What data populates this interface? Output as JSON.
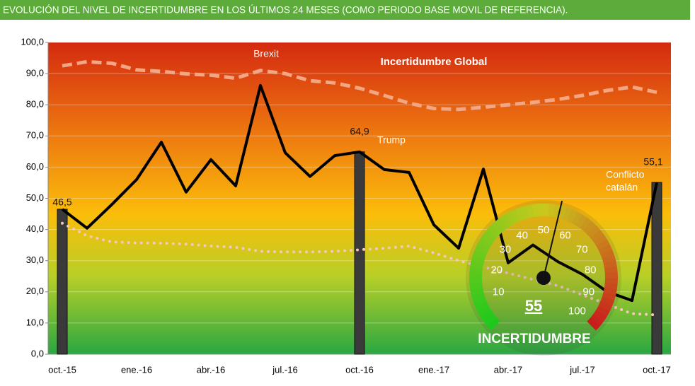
{
  "chart_data": {
    "type": "line",
    "title": "EVOLUCIÓN DEL NIVEL DE INCERTIDUMBRE EN LOS ÚLTIMOS 24 MESES (COMO PERIODO BASE MOVIL DE REFERENCIA).",
    "subtitle": "Incertidumbre Global",
    "categories": [
      "oct.-15",
      null,
      null,
      "ene.-16",
      null,
      null,
      "abr.-16",
      null,
      null,
      "jul.-16",
      null,
      null,
      "oct.-16",
      null,
      null,
      "ene.-17",
      null,
      null,
      "abr.-17",
      null,
      null,
      "jul.-17",
      null,
      null,
      "oct.-17"
    ],
    "ylim": [
      0,
      100
    ],
    "yticks": [
      {
        "value": 0,
        "label": "0,0"
      },
      {
        "value": 10,
        "label": "10,0"
      },
      {
        "value": 20,
        "label": "20,0"
      },
      {
        "value": 30,
        "label": "30,0"
      },
      {
        "value": 40,
        "label": "40,0"
      },
      {
        "value": 50,
        "label": "50,0"
      },
      {
        "value": 60,
        "label": "60,0"
      },
      {
        "value": 70,
        "label": "70,0"
      },
      {
        "value": 80,
        "label": "80,0"
      },
      {
        "value": 90,
        "label": "90,0"
      },
      {
        "value": 100,
        "label": "100,0"
      }
    ],
    "grid": true,
    "series": [
      {
        "type": "bar",
        "color": "#3a3a3a",
        "values": [
          46.5,
          null,
          null,
          null,
          null,
          null,
          null,
          null,
          null,
          null,
          null,
          null,
          64.9,
          null,
          null,
          null,
          null,
          null,
          null,
          null,
          null,
          null,
          null,
          null,
          55.1
        ],
        "value_labels": [
          "46,5",
          null,
          null,
          null,
          null,
          null,
          null,
          null,
          null,
          null,
          null,
          null,
          "64,9",
          null,
          null,
          null,
          null,
          null,
          null,
          null,
          null,
          null,
          null,
          null,
          "55,1"
        ]
      },
      {
        "type": "dashed",
        "color": "#f4a582",
        "values": [
          92.5,
          93.8,
          93.3,
          91.2,
          90.7,
          89.9,
          89.5,
          88.5,
          91,
          90,
          87.7,
          87,
          85.3,
          83,
          80.5,
          78.8,
          78.5,
          79.2,
          80,
          80.8,
          81.7,
          83,
          84.6,
          85.7,
          84
        ]
      },
      {
        "type": "dotted",
        "color": "#f7c6c0",
        "values": [
          42,
          38,
          36,
          35.7,
          35.6,
          35.3,
          34.7,
          34.3,
          33,
          32.8,
          32.8,
          33,
          33.5,
          34,
          34.7,
          32.5,
          30,
          28,
          26,
          24,
          22,
          19,
          16,
          13,
          12.6
        ]
      },
      {
        "type": "solid",
        "color": "#000000",
        "values": [
          46.5,
          40.4,
          48,
          56,
          68,
          52,
          62.4,
          54,
          86.2,
          64.6,
          57,
          63.7,
          64.9,
          59.2,
          58.3,
          41.5,
          34,
          59.4,
          29.3,
          35,
          29.7,
          25.6,
          20,
          17.2,
          55.1
        ]
      }
    ],
    "annotations": [
      [
        "Brexit"
      ],
      [
        "Trump"
      ],
      [
        "Conflicto",
        "catalán"
      ]
    ],
    "gauge": {
      "value": 55,
      "label": "INCERTIDUMBRE",
      "range": [
        0,
        100
      ],
      "ticks": [
        10,
        20,
        30,
        40,
        50,
        60,
        70,
        80,
        90,
        100
      ]
    }
  }
}
